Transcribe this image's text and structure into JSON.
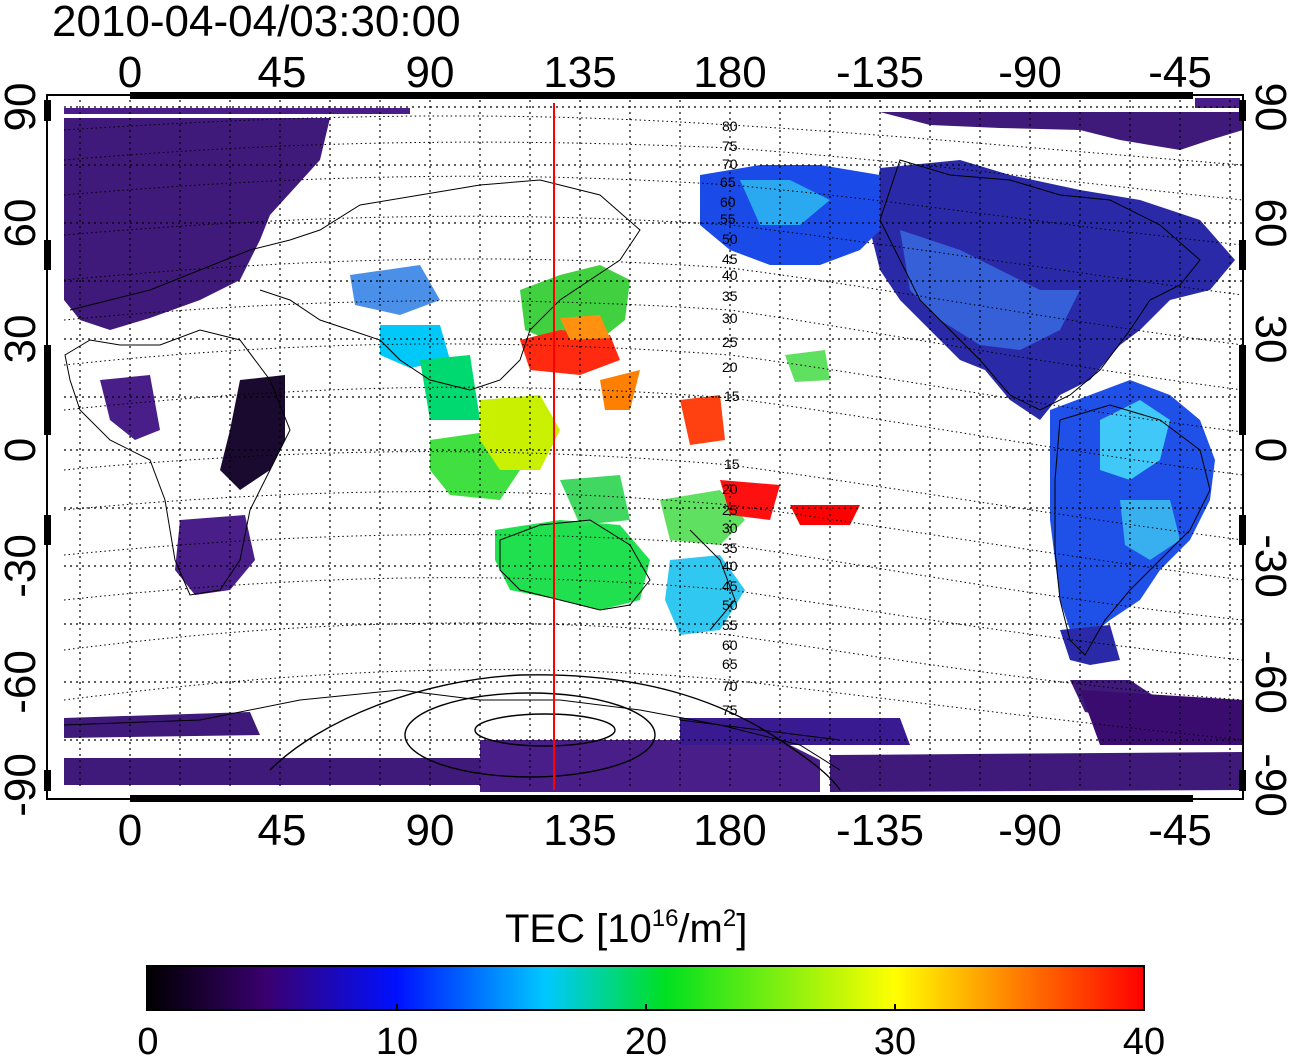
{
  "title": "2010-04-04/03:30:00",
  "top_lon_labels": [
    "0",
    "45",
    "90",
    "135",
    "180",
    "-135",
    "-90",
    "-45"
  ],
  "bottom_lon_labels": [
    "0",
    "45",
    "90",
    "135",
    "180",
    "-135",
    "-90",
    "-45"
  ],
  "left_lat_labels": [
    "90",
    "60",
    "30",
    "0",
    "-30",
    "-60",
    "-90"
  ],
  "right_lat_labels": [
    "90",
    "60",
    "30",
    "0",
    "-30",
    "-60",
    "-90"
  ],
  "contour_labels_north": [
    "80",
    "75",
    "70",
    "65",
    "60",
    "55",
    "50",
    "45",
    "40",
    "35",
    "30",
    "25",
    "20",
    "15"
  ],
  "contour_labels_south": [
    "15",
    "20",
    "25",
    "30",
    "35",
    "40",
    "45",
    "50",
    "55",
    "60",
    "65",
    "70",
    "75"
  ],
  "colorbar": {
    "title_prefix": "TEC  [10",
    "title_exp1": "16",
    "title_mid": "/m",
    "title_exp2": "2",
    "title_suffix": "]",
    "ticks": [
      "0",
      "10",
      "20",
      "30",
      "40"
    ],
    "min": 0,
    "max": 40,
    "colors": [
      "#000000",
      "#3a0070",
      "#0010ff",
      "#00c8ff",
      "#00e020",
      "#ffff00",
      "#ff8000",
      "#ff0000"
    ]
  },
  "meridian_line": {
    "longitude": 128,
    "color": "#ff0000"
  },
  "map": {
    "lon_range": [
      -25,
      335
    ],
    "lat_range": [
      -90,
      90
    ]
  }
}
